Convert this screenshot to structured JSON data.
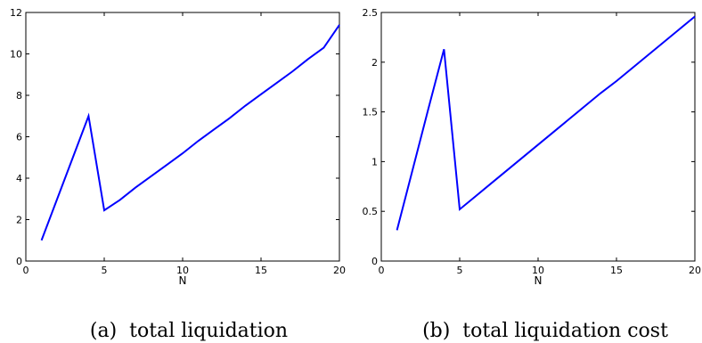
{
  "chart_data": [
    {
      "type": "line",
      "caption": "(a)  total liquidation",
      "xlabel": "N",
      "ylabel": "",
      "xlim": [
        0,
        20
      ],
      "ylim": [
        0,
        12
      ],
      "xticks": [
        0,
        5,
        10,
        15,
        20
      ],
      "yticks": [
        0,
        2,
        4,
        6,
        8,
        10,
        12
      ],
      "grid": false,
      "color": "#0000ff",
      "series": [
        {
          "x": [
            1,
            2,
            3,
            4,
            5,
            6,
            7,
            8,
            9,
            10,
            11,
            12,
            13,
            14,
            15,
            16,
            17,
            18,
            19,
            20
          ],
          "y": [
            1.0,
            3.0,
            5.0,
            7.0,
            2.45,
            2.95,
            3.55,
            4.1,
            4.65,
            5.2,
            5.8,
            6.35,
            6.9,
            7.5,
            8.05,
            8.6,
            9.15,
            9.75,
            10.3,
            11.4
          ]
        }
      ]
    },
    {
      "type": "line",
      "caption": "(b)  total liquidation cost",
      "xlabel": "N",
      "ylabel": "",
      "xlim": [
        0,
        20
      ],
      "ylim": [
        0,
        2.5
      ],
      "xticks": [
        0,
        5,
        10,
        15,
        20
      ],
      "yticks": [
        0,
        0.5,
        1,
        1.5,
        2,
        2.5
      ],
      "grid": false,
      "color": "#0000ff",
      "series": [
        {
          "x": [
            1,
            2,
            3,
            4,
            5,
            6,
            7,
            8,
            9,
            10,
            11,
            12,
            13,
            14,
            15,
            16,
            17,
            18,
            19,
            20
          ],
          "y": [
            0.31,
            0.92,
            1.53,
            2.13,
            0.52,
            0.65,
            0.78,
            0.91,
            1.04,
            1.17,
            1.3,
            1.43,
            1.56,
            1.69,
            1.81,
            1.94,
            2.07,
            2.2,
            2.33,
            2.46
          ]
        }
      ]
    }
  ]
}
